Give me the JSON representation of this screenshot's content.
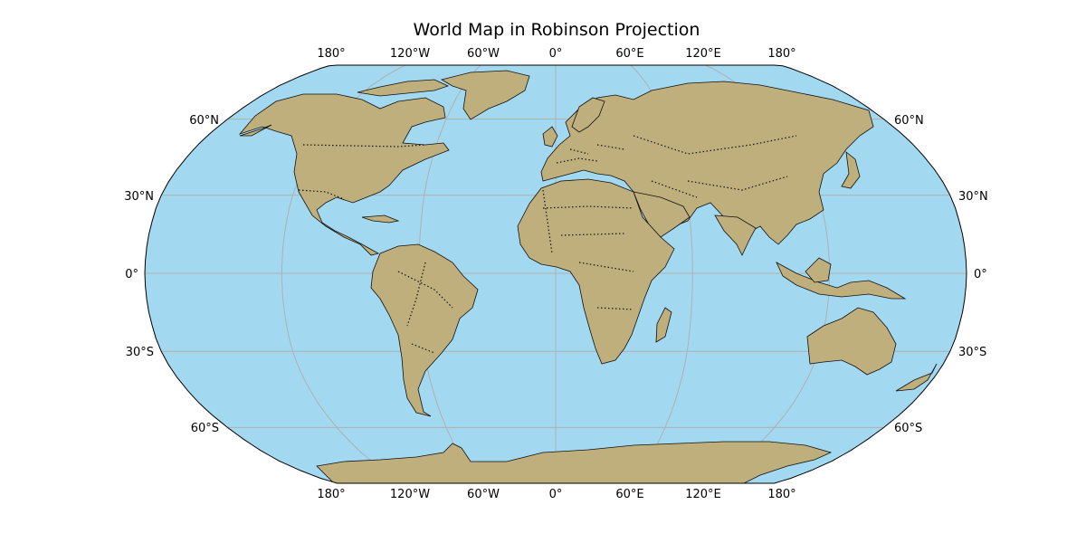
{
  "title": "World Map in Robinson Projection",
  "colors": {
    "ocean": "#a3d8f1",
    "land": "#bfaf7c",
    "coast": "#111111",
    "border": "#111111",
    "grid": "#b0b0b0",
    "outline": "#000000"
  },
  "longitude_labels": [
    "180°",
    "120°W",
    "60°W",
    "0°",
    "60°E",
    "120°E",
    "180°"
  ],
  "latitude_labels_left": [
    "60°N",
    "30°N",
    "0°",
    "30°S",
    "60°S"
  ],
  "latitude_labels_right": [
    "60°N",
    "30°N",
    "0°",
    "30°S",
    "60°S"
  ],
  "features": [
    "coastlines",
    "country borders",
    "graticule"
  ]
}
